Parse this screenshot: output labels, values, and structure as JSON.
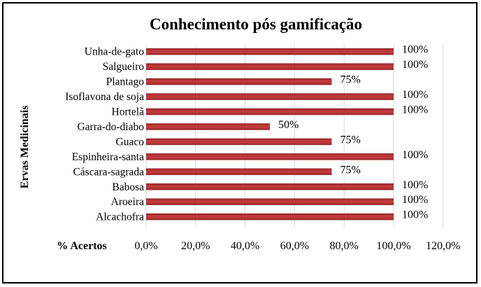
{
  "chart_data": {
    "type": "bar",
    "orientation": "horizontal",
    "title": "Conhecimento pós gamificação",
    "xlabel": "% Acertos",
    "ylabel": "Ervas Medicinais",
    "categories": [
      "Unha-de-gato",
      "Salgueiro",
      "Plantago",
      "Isoflavona de soja",
      "Hortelã",
      "Garra-do-diabo",
      "Guaco",
      "Espinheira-santa",
      "Cáscara-sagrada",
      "Babosa",
      "Aroeira",
      "Alcachofra"
    ],
    "values": [
      100,
      100,
      75,
      100,
      100,
      50,
      75,
      100,
      75,
      100,
      100,
      100
    ],
    "data_labels": [
      "100%",
      "100%",
      "75%",
      "100%",
      "100%",
      "50%",
      "75%",
      "100%",
      "75%",
      "100%",
      "100%",
      "100%"
    ],
    "xlim": [
      0,
      120
    ],
    "xticks": [
      "0,0%",
      "20,0%",
      "40,0%",
      "60,0%",
      "80,0%",
      "100,0%",
      "120,0%"
    ],
    "grid": "vertical",
    "legend": "none",
    "colors": {
      "bar": "#c0393b",
      "bar_shade": "#8e2426",
      "grid": "#d9d9d9"
    }
  }
}
